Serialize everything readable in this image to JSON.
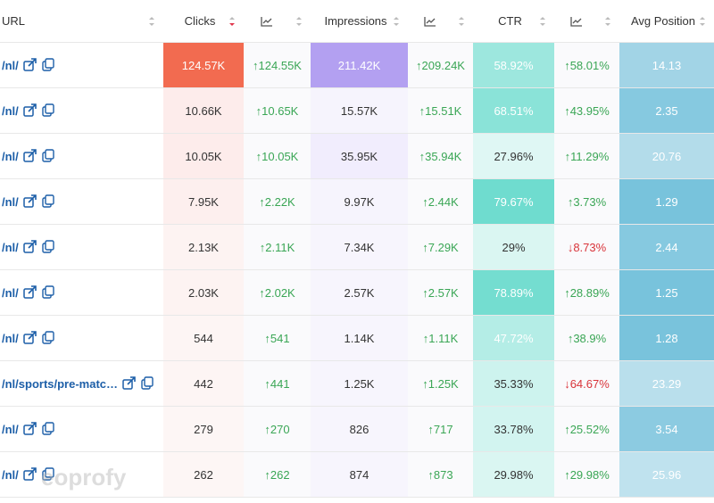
{
  "table": {
    "headers": [
      "URL",
      "Clicks",
      "Impressions",
      "CTR",
      "Avg Position"
    ],
    "rows": [
      [
        "/nl/",
        "124.57K",
        "↑124.55K",
        "211.42K",
        "↑209.24K",
        "58.92%",
        "↑58.01%",
        "14.13"
      ],
      [
        "/nl/",
        "10.66K",
        "↑10.65K",
        "15.57K",
        "↑15.51K",
        "68.51%",
        "↑43.95%",
        "2.35"
      ],
      [
        "/nl/",
        "10.05K",
        "↑10.05K",
        "35.95K",
        "↑35.94K",
        "27.96%",
        "↑11.29%",
        "20.76"
      ],
      [
        "/nl/",
        "7.95K",
        "↑2.22K",
        "9.97K",
        "↑2.44K",
        "79.67%",
        "↑3.73%",
        "1.29"
      ],
      [
        "/nl/",
        "2.13K",
        "↑2.11K",
        "7.34K",
        "↑7.29K",
        "29%",
        "↓8.73%",
        "2.44"
      ],
      [
        "/nl/",
        "2.03K",
        "↑2.02K",
        "2.57K",
        "↑2.57K",
        "78.89%",
        "↑28.89%",
        "1.25"
      ],
      [
        "/nl/",
        "544",
        "↑541",
        "1.14K",
        "↑1.11K",
        "47.72%",
        "↑38.9%",
        "1.28"
      ],
      [
        "/nl/sports/pre-matc…",
        "442",
        "↑441",
        "1.25K",
        "↑1.25K",
        "35.33%",
        "↓64.67%",
        "23.29"
      ],
      [
        "/nl/",
        "279",
        "↑270",
        "826",
        "↑717",
        "33.78%",
        "↑25.52%",
        "3.54"
      ],
      [
        "/nl/",
        "262",
        "↑262",
        "874",
        "↑873",
        "29.98%",
        "↑29.98%",
        "25.96"
      ]
    ],
    "watermark": "eoprofy"
  }
}
